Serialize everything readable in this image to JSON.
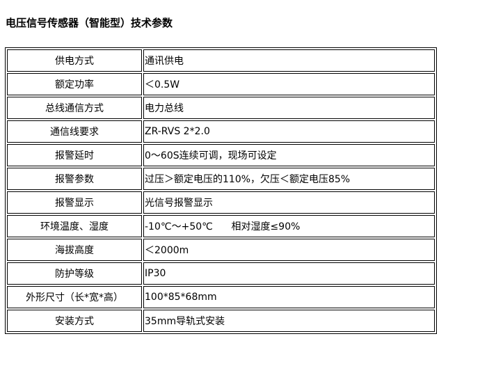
{
  "title": "电压信号传感器（智能型）技术参数",
  "rows": [
    {
      "label": "供电方式",
      "value": "通讯供电"
    },
    {
      "label": "额定功率",
      "value": "＜0.5W"
    },
    {
      "label": "总线通信方式",
      "value": "电力总线"
    },
    {
      "label": "通信线要求",
      "value": "ZR-RVS 2*2.0"
    },
    {
      "label": "报警延时",
      "value": "0～60S连续可调，现场可设定"
    },
    {
      "label": "报警参数",
      "value": "过压＞额定电压的110%，欠压＜额定电压85%"
    },
    {
      "label": "报警显示",
      "value": "光信号报警显示"
    },
    {
      "label": "环境温度、湿度",
      "value": "-10℃～+50℃      相对湿度≤90%"
    },
    {
      "label": "海拔高度",
      "value": "＜2000m"
    },
    {
      "label": "防护等级",
      "value": "IP30"
    },
    {
      "label": "外形尺寸（长*宽*高）",
      "value": "100*85*68mm"
    },
    {
      "label": "安装方式",
      "value": "35mm导轨式安装"
    }
  ]
}
